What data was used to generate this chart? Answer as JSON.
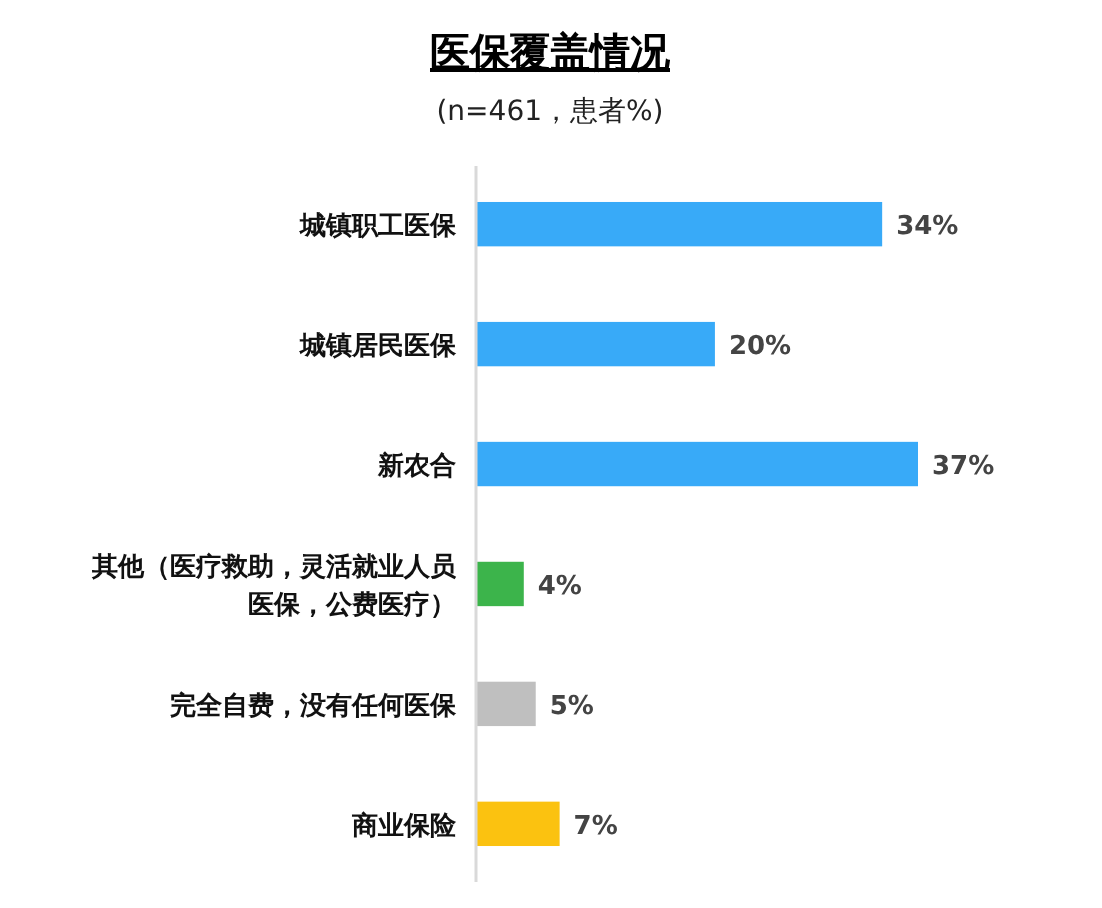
{
  "chart_data": {
    "type": "bar",
    "orientation": "horizontal",
    "title": "医保覆盖情况",
    "subtitle": "(n=461，患者%)",
    "categories": [
      "城镇职工医保",
      "城镇居民医保",
      "新农合",
      "其他（医疗救助，灵活就业人员医保，公费医疗）",
      "完全自费，没有任何医保",
      "商业保险"
    ],
    "values": [
      34,
      20,
      37,
      4,
      5,
      7
    ],
    "colors": [
      "#38aaf8",
      "#38aaf8",
      "#38aaf8",
      "#3cb44b",
      "#bfbfbf",
      "#fbc210"
    ],
    "value_labels": [
      "34%",
      "20%",
      "37%",
      "4%",
      "5%",
      "7%"
    ]
  }
}
